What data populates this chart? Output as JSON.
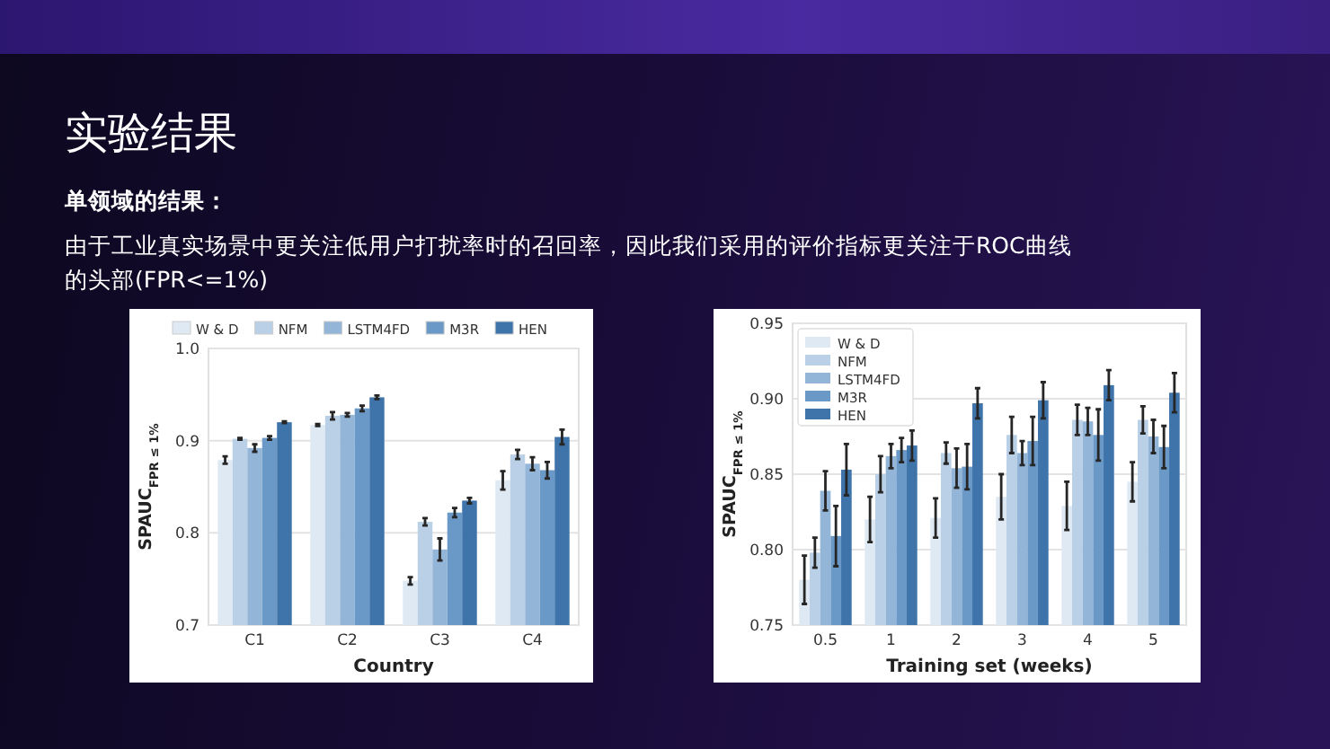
{
  "chart_data": [
    {
      "type": "other",
      "title": "实验结果",
      "subtitle": "**单领域的结果：**",
      "annotations": [
        "由于工业真实场景中更关注低用户打扰率时的召回率，因此我们采用的评价指标更关注于ROC曲线的头部(FPR<=1%)"
      ]
    },
    {
      "type": "bar",
      "xlabel": "Country",
      "ylabel": "SPAUC$_{FPR ≤ 1%}$",
      "categories": [
        "C1",
        "C2",
        "C3",
        "C4"
      ],
      "ylim": [
        0.7,
        1.0
      ],
      "yticks": [
        0.7,
        0.8,
        0.9,
        {
          "value": 1.0,
          "label": "1.0"
        }
      ],
      "grid": "y",
      "legend": "top",
      "series": [
        {
          "name": "W & D",
          "color": "#dfe9f4",
          "values": [
            0.879,
            0.917,
            0.748,
            0.857
          ],
          "errors": [
            0.004,
            0.001,
            0.004,
            0.01
          ]
        },
        {
          "name": "NFM",
          "color": "#bad0e6",
          "values": [
            0.902,
            0.927,
            0.812,
            0.885
          ],
          "errors": [
            0.001,
            0.004,
            0.004,
            0.005
          ]
        },
        {
          "name": "LSTM4FD",
          "color": "#93b6d8",
          "values": [
            0.892,
            0.928,
            0.782,
            0.875
          ],
          "errors": [
            0.004,
            0.002,
            0.012,
            0.007
          ]
        },
        {
          "name": "M3R",
          "color": "#6b99c7",
          "values": [
            0.903,
            0.935,
            0.822,
            0.868
          ],
          "errors": [
            0.002,
            0.003,
            0.005,
            0.009
          ]
        },
        {
          "name": "HEN",
          "color": "#3f74ab",
          "values": [
            0.92,
            0.947,
            0.835,
            0.904
          ],
          "errors": [
            0.001,
            0.002,
            0.003,
            0.008
          ]
        }
      ]
    },
    {
      "type": "bar",
      "xlabel": "Training set (weeks)",
      "ylabel": "SPAUC$_{FPR ≤ 1%}$",
      "categories": [
        "0.5",
        "1",
        "2",
        "3",
        "4",
        "5"
      ],
      "ylim": [
        0.75,
        0.95
      ],
      "yticks": [
        0.75,
        {
          "value": 0.8,
          "label": "0.80"
        },
        0.85,
        {
          "value": 0.9,
          "label": "0.90"
        },
        0.95
      ],
      "grid": "y",
      "legend": "top left",
      "series": [
        {
          "name": "W & D",
          "color": "#dfe9f4",
          "values": [
            0.78,
            0.82,
            0.821,
            0.835,
            0.829,
            0.845
          ],
          "errors": [
            0.016,
            0.015,
            0.013,
            0.015,
            0.016,
            0.013
          ]
        },
        {
          "name": "NFM",
          "color": "#bad0e6",
          "values": [
            0.798,
            0.85,
            0.864,
            0.876,
            0.886,
            0.886
          ],
          "errors": [
            0.01,
            0.012,
            0.007,
            0.012,
            0.01,
            0.009
          ]
        },
        {
          "name": "LSTM4FD",
          "color": "#93b6d8",
          "values": [
            0.839,
            0.862,
            0.854,
            0.864,
            0.885,
            0.875
          ],
          "errors": [
            0.013,
            0.008,
            0.013,
            0.008,
            0.009,
            0.011
          ]
        },
        {
          "name": "M3R",
          "color": "#6b99c7",
          "values": [
            0.809,
            0.866,
            0.855,
            0.872,
            0.876,
            0.868
          ],
          "errors": [
            0.02,
            0.008,
            0.015,
            0.016,
            0.017,
            0.014
          ]
        },
        {
          "name": "HEN",
          "color": "#3f74ab",
          "values": [
            0.853,
            0.869,
            0.897,
            0.899,
            0.909,
            0.904
          ],
          "errors": [
            0.017,
            0.01,
            0.01,
            0.012,
            0.01,
            0.013
          ]
        }
      ]
    }
  ]
}
